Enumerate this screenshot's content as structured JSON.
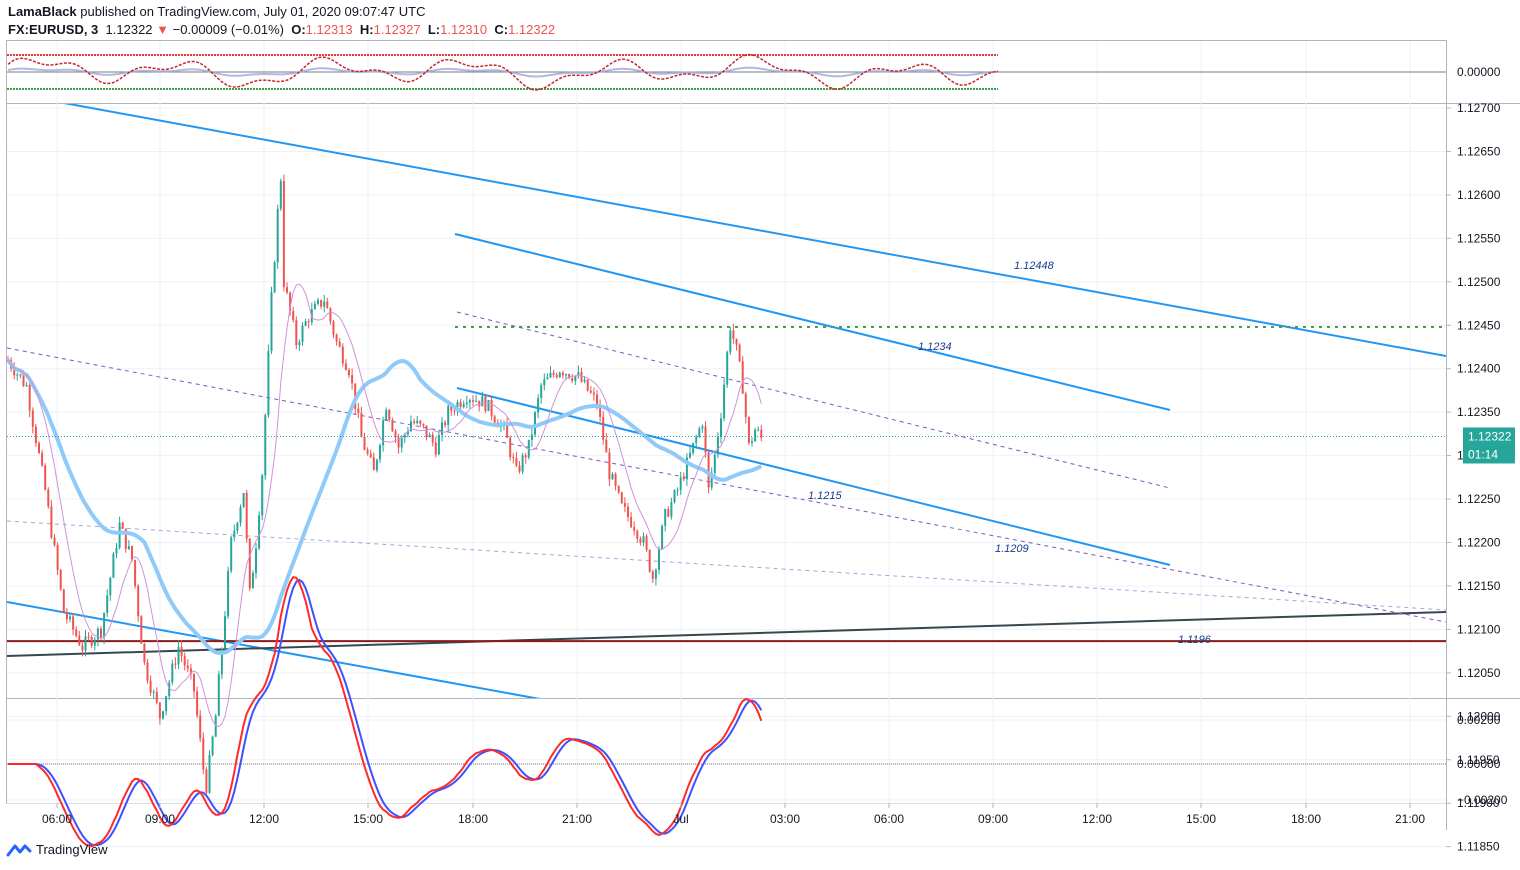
{
  "header": {
    "author": "LamaBlack",
    "published": "published on TradingView.com, July 01, 2020 09:07:47 UTC",
    "symbol": "FX:EURUSD, 3",
    "last": "1.12322",
    "change_arrow": "▼",
    "change": "−0.00009 (−0.01%)",
    "o_label": "O:",
    "o_value": "1.12313",
    "h_label": "H:",
    "h_value": "1.12327",
    "l_label": "L:",
    "l_value": "1.12310",
    "c_label": "C:",
    "c_value": "1.12322"
  },
  "footer": {
    "brand": "TradingView",
    "logo_icon": "tradingview-logo-icon"
  },
  "colors": {
    "up": "#26a69a",
    "down": "#ef5350",
    "channel": "#2196f3",
    "ma_thick": "#90caf9",
    "ma_thin": "#ce93d8",
    "support": "#8b1a1a",
    "trend": "#37474f",
    "resistance_dotted": "#43a047",
    "price_tag": "#26a69a"
  },
  "chart_data": {
    "type": "candlestick",
    "symbol": "FX:EURUSD",
    "timeframe": "3",
    "x_ticks": [
      "06:00",
      "09:00",
      "12:00",
      "15:00",
      "18:00",
      "21:00",
      "Jul",
      "03:00",
      "06:00",
      "09:00",
      "12:00",
      "15:00",
      "18:00",
      "21:00"
    ],
    "y_ticks": [
      "1.12700",
      "1.12650",
      "1.12600",
      "1.12550",
      "1.12500",
      "1.12450",
      "1.12400",
      "1.12350",
      "1.12300",
      "1.12250",
      "1.12200",
      "1.12150",
      "1.12100",
      "1.12050",
      "1.12000",
      "1.11950",
      "1.11900",
      "1.11850"
    ],
    "ylim": [
      1.1184,
      1.1272
    ],
    "current_price": "1.12322",
    "countdown": "01:14",
    "annotations": [
      {
        "text": "1.12448",
        "price": 1.12448
      },
      {
        "text": "1.1234",
        "price": 1.1234
      },
      {
        "text": "1.1215",
        "price": 1.1215
      },
      {
        "text": "1.1209",
        "price": 1.1209
      },
      {
        "text": "1.1196",
        "price": 1.1196
      }
    ],
    "resistance_level": 1.12448,
    "support_level": 1.1209,
    "price_path": [
      [
        0,
        1.1241
      ],
      [
        6,
        1.1238
      ],
      [
        12,
        1.1226
      ],
      [
        18,
        1.1212
      ],
      [
        24,
        1.1208
      ],
      [
        30,
        1.121
      ],
      [
        36,
        1.1222
      ],
      [
        40,
        1.1218
      ],
      [
        44,
        1.1206
      ],
      [
        49,
        1.12
      ],
      [
        55,
        1.1208
      ],
      [
        60,
        1.1203
      ],
      [
        63,
        1.1194
      ],
      [
        64,
        1.1192
      ],
      [
        67,
        1.12
      ],
      [
        72,
        1.122
      ],
      [
        76,
        1.1226
      ],
      [
        78,
        1.1214
      ],
      [
        80,
        1.122
      ],
      [
        82,
        1.1228
      ],
      [
        85,
        1.1248
      ],
      [
        87,
        1.1258
      ],
      [
        88,
        1.1262
      ],
      [
        89,
        1.125
      ],
      [
        93,
        1.1243
      ],
      [
        97,
        1.1246
      ],
      [
        102,
        1.1248
      ],
      [
        106,
        1.1243
      ],
      [
        110,
        1.124
      ],
      [
        114,
        1.1232
      ],
      [
        118,
        1.1228
      ],
      [
        122,
        1.1236
      ],
      [
        126,
        1.1231
      ],
      [
        130,
        1.1234
      ],
      [
        134,
        1.1233
      ],
      [
        138,
        1.1231
      ],
      [
        142,
        1.1235
      ],
      [
        148,
        1.1237
      ],
      [
        154,
        1.1236
      ],
      [
        160,
        1.1233
      ],
      [
        164,
        1.1228
      ],
      [
        168,
        1.1231
      ],
      [
        172,
        1.1238
      ],
      [
        178,
        1.124
      ],
      [
        184,
        1.1239
      ],
      [
        190,
        1.1236
      ],
      [
        194,
        1.1228
      ],
      [
        198,
        1.1224
      ],
      [
        202,
        1.1222
      ],
      [
        205,
        1.122
      ],
      [
        208,
        1.1216
      ],
      [
        212,
        1.1223
      ],
      [
        216,
        1.1226
      ],
      [
        220,
        1.123
      ],
      [
        224,
        1.1234
      ],
      [
        226,
        1.1226
      ],
      [
        228,
        1.123
      ],
      [
        230,
        1.1235
      ],
      [
        233,
        1.1245
      ],
      [
        235,
        1.1242
      ],
      [
        237,
        1.1238
      ],
      [
        239,
        1.1231
      ],
      [
        241,
        1.1233
      ],
      [
        243,
        1.1232
      ]
    ],
    "panels": [
      {
        "name": "top-oscillator",
        "y_tick": "0.00000"
      },
      {
        "name": "macd",
        "y_ticks": [
          "0.00200",
          "0.00000",
          "−0.00200"
        ]
      }
    ]
  }
}
